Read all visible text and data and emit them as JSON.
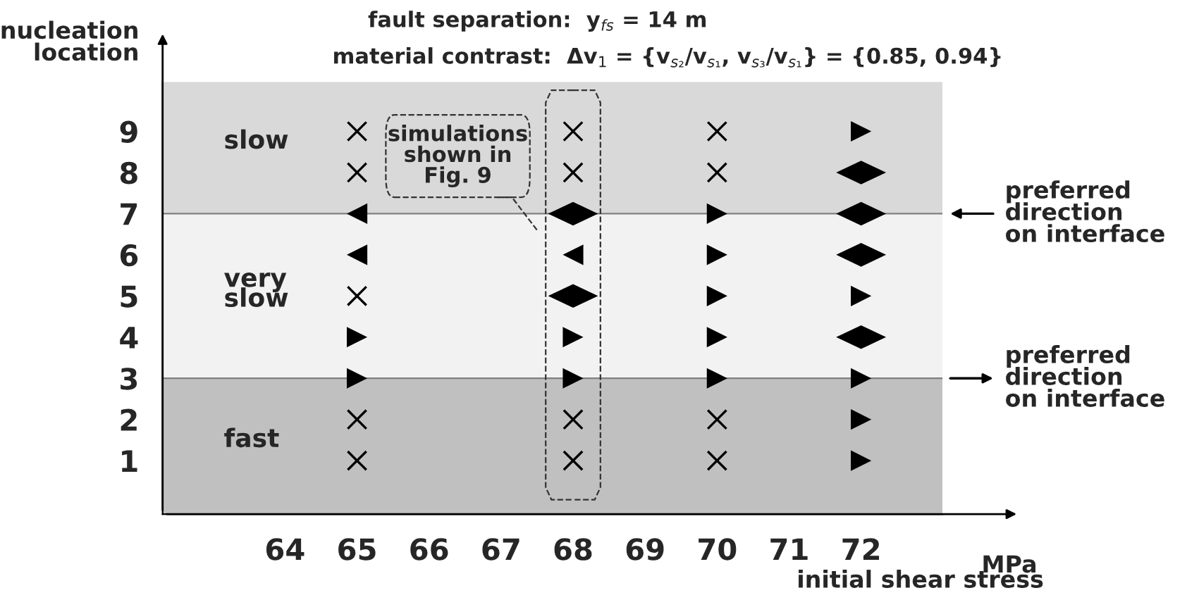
{
  "chart_data": {
    "type": "scatter",
    "title": "fault separation:  y$_{fs}$ = 14 m",
    "subtitle": "material contrast:  Δv$_{1}$ = {v$_{s₂}$/v$_{s₁}$, v$_{s₃}$/v$_{s₁}$} = {0.85, 0.94}",
    "xlabel": "initial shear stress",
    "ylabel": "nucleation\nlocation",
    "xlim": [
      62.3,
      73.13
    ],
    "xticks": [
      64,
      65,
      66,
      67,
      68,
      69,
      70,
      71,
      72
    ],
    "ylim": [
      -0.3,
      10.2
    ],
    "yticks": [
      1,
      2,
      3,
      4,
      5,
      6,
      7,
      8,
      9
    ],
    "series": [
      {
        "marker": "cross",
        "color": "#000000",
        "x": [
          65,
          65,
          65,
          65,
          65,
          68,
          68,
          68,
          68,
          70,
          70,
          70,
          70
        ],
        "values": [
          9,
          8,
          5,
          2,
          1,
          9,
          8,
          2,
          1,
          9,
          8,
          2,
          1
        ]
      },
      {
        "marker": "triangle",
        "color": "#000000",
        "x": [
          65,
          65,
          68
        ],
        "values": [
          7,
          6,
          6
        ]
      },
      {
        "marker": "triangle",
        "color": "#000000",
        "x": [
          65,
          65,
          68,
          68,
          70,
          70,
          70,
          70,
          70,
          72,
          72,
          72,
          72,
          72
        ],
        "values": [
          4,
          3,
          4,
          3,
          7,
          6,
          5,
          4,
          3,
          9,
          5,
          3,
          2,
          1
        ]
      },
      {
        "marker": "diamond",
        "color": "#000000",
        "x": [
          68,
          68,
          72,
          72,
          72,
          72
        ],
        "values": [
          7,
          5,
          8,
          7,
          6,
          4
        ]
      }
    ],
    "bands": [
      {
        "axis": "y",
        "from": -0.3,
        "to": 3,
        "label": "fast",
        "color": "#c0c0c0"
      },
      {
        "axis": "y",
        "from": 3,
        "to": 7,
        "label": "very\nslow",
        "color": "#f2f2f2"
      },
      {
        "axis": "y",
        "from": 7,
        "to": 10.2,
        "label": "slow",
        "color": "#d9d9d9"
      }
    ],
    "ref_lines": [
      {
        "axis": "y",
        "value": 7,
        "label": "preferred\ndirection\non interface",
        "color": "#808080"
      },
      {
        "axis": "y",
        "value": 3,
        "label": "preferred\ndirection\non interface",
        "color": "#808080"
      }
    ],
    "annotations": [
      "simulations\nshown in\nFig. 9",
      "MPa"
    ],
    "grid": false,
    "legend": false
  }
}
